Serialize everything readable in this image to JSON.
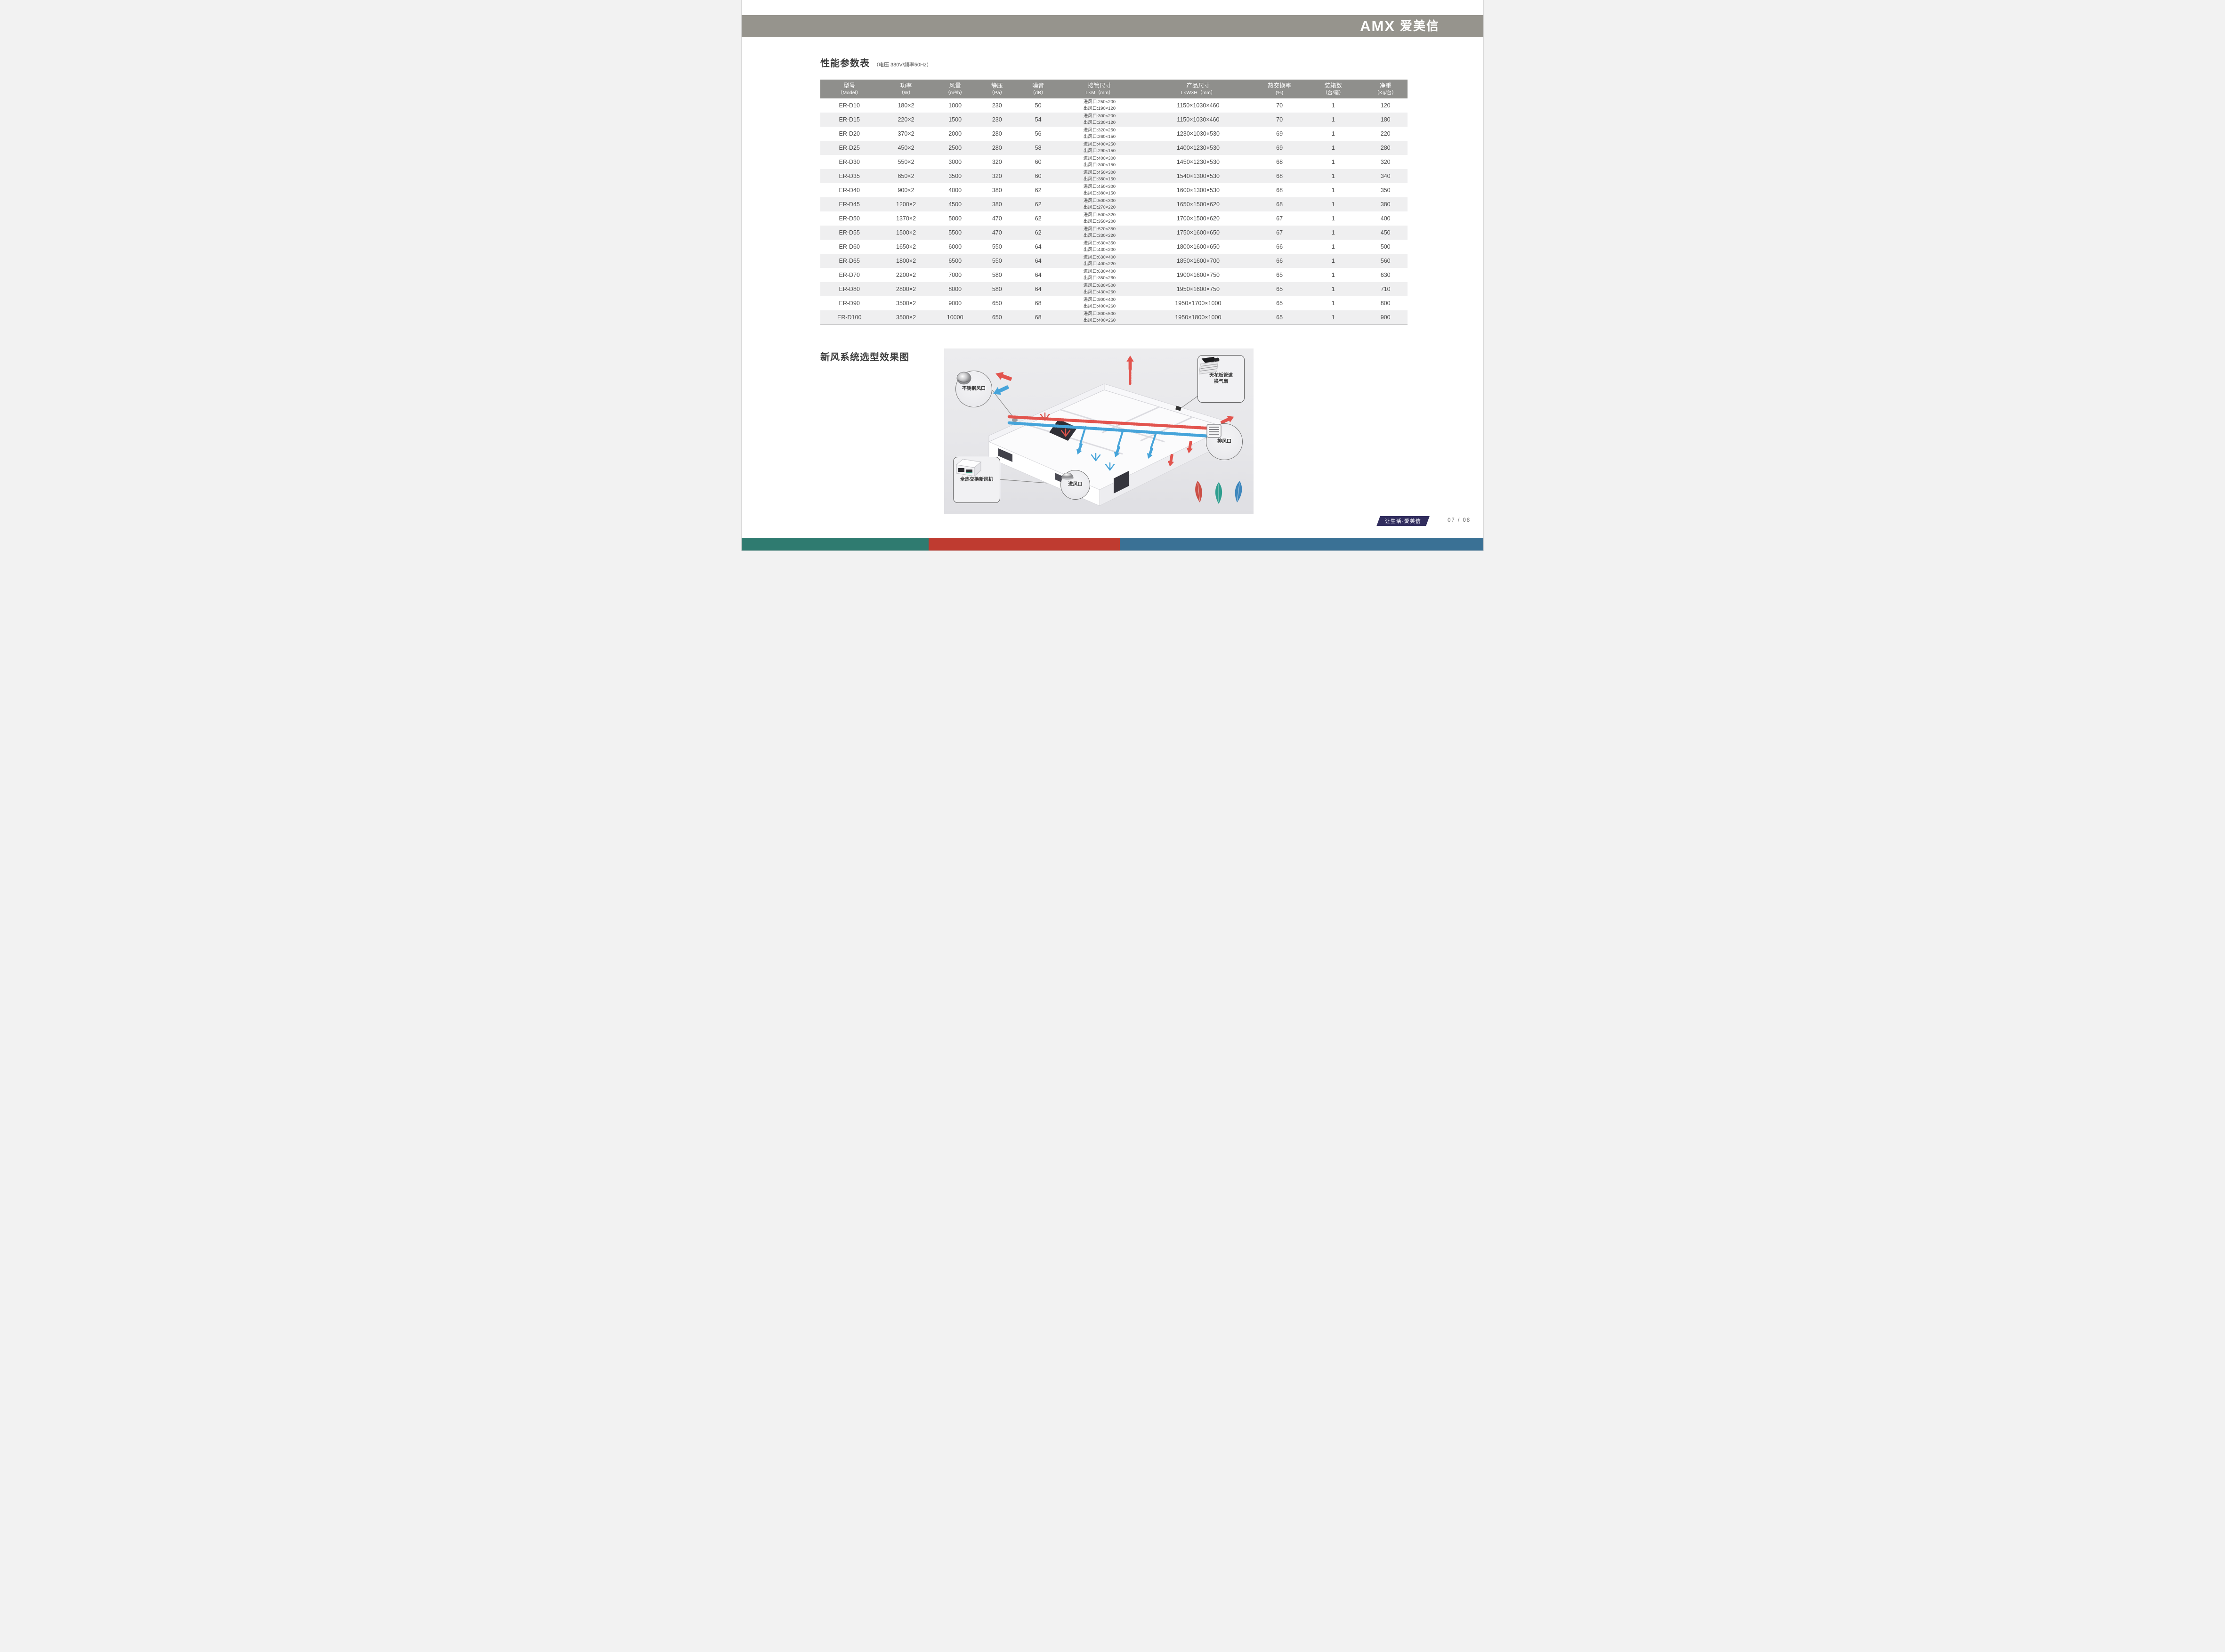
{
  "brand": {
    "logo_en": "AMX",
    "logo_cn": "爱美信"
  },
  "table_section": {
    "title": "性能参数表",
    "subtitle": "（电压 380V/频率50Hz）",
    "columns": [
      {
        "l1": "型号",
        "l2": "（Model）"
      },
      {
        "l1": "功率",
        "l2": "（W）"
      },
      {
        "l1": "风量",
        "l2": "（m³/h）"
      },
      {
        "l1": "静压",
        "l2": "（Pa）"
      },
      {
        "l1": "噪音",
        "l2": "（dB）"
      },
      {
        "l1": "接管尺寸",
        "l2": "L×M（mm）"
      },
      {
        "l1": "产品尺寸",
        "l2": "L×W×H（mm）"
      },
      {
        "l1": "热交换率",
        "l2": "(%)"
      },
      {
        "l1": "装箱数",
        "l2": "（台/箱）"
      },
      {
        "l1": "净重",
        "l2": "（Kg/台）"
      }
    ],
    "rows": [
      {
        "model": "ER-D10",
        "power": "180×2",
        "airflow": "1000",
        "pressure": "230",
        "noise": "50",
        "inlet": "进风口:250×200",
        "outlet": "出风口:190×120",
        "size": "1150×1030×460",
        "exchange": "70",
        "qty": "1",
        "weight": "120"
      },
      {
        "model": "ER-D15",
        "power": "220×2",
        "airflow": "1500",
        "pressure": "230",
        "noise": "54",
        "inlet": "进风口:300×200",
        "outlet": "出风口:230×120",
        "size": "1150×1030×460",
        "exchange": "70",
        "qty": "1",
        "weight": "180"
      },
      {
        "model": "ER-D20",
        "power": "370×2",
        "airflow": "2000",
        "pressure": "280",
        "noise": "56",
        "inlet": "进风口:320×250",
        "outlet": "出风口:260×150",
        "size": "1230×1030×530",
        "exchange": "69",
        "qty": "1",
        "weight": "220"
      },
      {
        "model": "ER-D25",
        "power": "450×2",
        "airflow": "2500",
        "pressure": "280",
        "noise": "58",
        "inlet": "进风口:400×250",
        "outlet": "出风口:290×150",
        "size": "1400×1230×530",
        "exchange": "69",
        "qty": "1",
        "weight": "280"
      },
      {
        "model": "ER-D30",
        "power": "550×2",
        "airflow": "3000",
        "pressure": "320",
        "noise": "60",
        "inlet": "进风口:400×300",
        "outlet": "出风口:300×150",
        "size": "1450×1230×530",
        "exchange": "68",
        "qty": "1",
        "weight": "320"
      },
      {
        "model": "ER-D35",
        "power": "650×2",
        "airflow": "3500",
        "pressure": "320",
        "noise": "60",
        "inlet": "进风口:450×300",
        "outlet": "出风口:380×150",
        "size": "1540×1300×530",
        "exchange": "68",
        "qty": "1",
        "weight": "340"
      },
      {
        "model": "ER-D40",
        "power": "900×2",
        "airflow": "4000",
        "pressure": "380",
        "noise": "62",
        "inlet": "进风口:450×300",
        "outlet": "出风口:380×150",
        "size": "1600×1300×530",
        "exchange": "68",
        "qty": "1",
        "weight": "350"
      },
      {
        "model": "ER-D45",
        "power": "1200×2",
        "airflow": "4500",
        "pressure": "380",
        "noise": "62",
        "inlet": "进风口:500×300",
        "outlet": "出风口:270×220",
        "size": "1650×1500×620",
        "exchange": "68",
        "qty": "1",
        "weight": "380"
      },
      {
        "model": "ER-D50",
        "power": "1370×2",
        "airflow": "5000",
        "pressure": "470",
        "noise": "62",
        "inlet": "进风口:500×320",
        "outlet": "出风口:350×200",
        "size": "1700×1500×620",
        "exchange": "67",
        "qty": "1",
        "weight": "400"
      },
      {
        "model": "ER-D55",
        "power": "1500×2",
        "airflow": "5500",
        "pressure": "470",
        "noise": "62",
        "inlet": "进风口:520×350",
        "outlet": "出风口:330×220",
        "size": "1750×1600×650",
        "exchange": "67",
        "qty": "1",
        "weight": "450"
      },
      {
        "model": "ER-D60",
        "power": "1650×2",
        "airflow": "6000",
        "pressure": "550",
        "noise": "64",
        "inlet": "进风口:630×350",
        "outlet": "出风口:430×200",
        "size": "1800×1600×650",
        "exchange": "66",
        "qty": "1",
        "weight": "500"
      },
      {
        "model": "ER-D65",
        "power": "1800×2",
        "airflow": "6500",
        "pressure": "550",
        "noise": "64",
        "inlet": "进风口:630×400",
        "outlet": "出风口:400×220",
        "size": "1850×1600×700",
        "exchange": "66",
        "qty": "1",
        "weight": "560"
      },
      {
        "model": "ER-D70",
        "power": "2200×2",
        "airflow": "7000",
        "pressure": "580",
        "noise": "64",
        "inlet": "进风口:630×400",
        "outlet": "出风口:350×260",
        "size": "1900×1600×750",
        "exchange": "65",
        "qty": "1",
        "weight": "630"
      },
      {
        "model": "ER-D80",
        "power": "2800×2",
        "airflow": "8000",
        "pressure": "580",
        "noise": "64",
        "inlet": "进风口:630×500",
        "outlet": "出风口:430×260",
        "size": "1950×1600×750",
        "exchange": "65",
        "qty": "1",
        "weight": "710"
      },
      {
        "model": "ER-D90",
        "power": "3500×2",
        "airflow": "9000",
        "pressure": "650",
        "noise": "68",
        "inlet": "进风口:800×400",
        "outlet": "出风口:400×260",
        "size": "1950×1700×1000",
        "exchange": "65",
        "qty": "1",
        "weight": "800"
      },
      {
        "model": "ER-D100",
        "power": "3500×2",
        "airflow": "10000",
        "pressure": "650",
        "noise": "68",
        "inlet": "进风口:800×500",
        "outlet": "出风口:400×260",
        "size": "1950×1800×1000",
        "exchange": "65",
        "qty": "1",
        "weight": "900"
      }
    ]
  },
  "diagram_section": {
    "title": "新风系统选型效果图",
    "callouts": {
      "stainless_vent": "不锈钢风口",
      "ceiling_fan_line1": "天花板管道",
      "ceiling_fan_line2": "换气扇",
      "exhaust_vent": "排风口",
      "erv_unit": "全热交换新风机",
      "intake_vent": "进风口"
    }
  },
  "footer": {
    "slogan": "让生活·爱美信",
    "page": "07 / 08"
  },
  "colors": {
    "band": "#96948d",
    "header": "#8f8f8c",
    "stripe": "#efeff0",
    "bar_teal": "#2f7b70",
    "bar_red": "#bf3b30",
    "bar_blue": "#3a7195",
    "badge_navy": "#312d5e",
    "duct_red": "#e2544e",
    "duct_blue": "#46a4da"
  }
}
